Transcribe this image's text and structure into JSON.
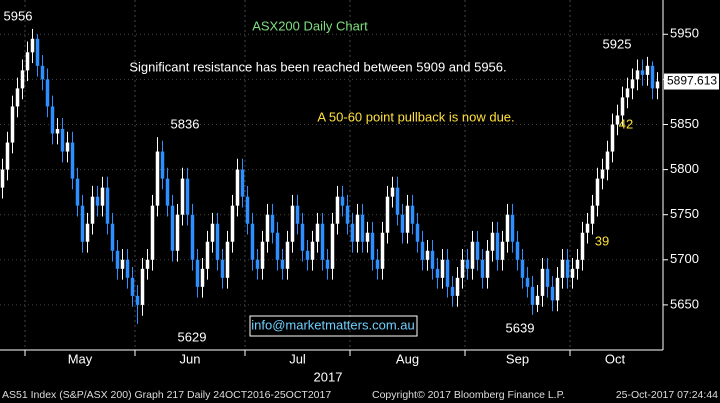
{
  "chart_data": {
    "type": "candlestick",
    "title": "ASX200 Daily Chart",
    "up_color": "#ffffff",
    "down_color": "#2f8fff",
    "ylim": [
      5600,
      5988
    ],
    "yticks": [
      5650,
      5700,
      5750,
      5800,
      5850,
      5900,
      5950
    ],
    "grid": true,
    "year_label": "2017",
    "months": [
      {
        "label": "May",
        "start": 5
      },
      {
        "label": "Jun",
        "start": 27
      },
      {
        "label": "Jul",
        "start": 49
      },
      {
        "label": "Aug",
        "start": 70
      },
      {
        "label": "Sep",
        "start": 93
      },
      {
        "label": "Oct",
        "start": 114
      }
    ],
    "open": [
      5780,
      5800,
      5830,
      5870,
      5890,
      5910,
      5930,
      5945,
      5915,
      5900,
      5870,
      5840,
      5845,
      5820,
      5830,
      5790,
      5760,
      5720,
      5740,
      5770,
      5760,
      5780,
      5740,
      5710,
      5690,
      5700,
      5680,
      5660,
      5650,
      5690,
      5700,
      5760,
      5820,
      5790,
      5760,
      5710,
      5750,
      5790,
      5750,
      5700,
      5670,
      5690,
      5720,
      5740,
      5700,
      5680,
      5720,
      5760,
      5800,
      5770,
      5740,
      5700,
      5690,
      5720,
      5750,
      5730,
      5700,
      5690,
      5720,
      5760,
      5740,
      5710,
      5700,
      5720,
      5740,
      5700,
      5690,
      5740,
      5770,
      5760,
      5740,
      5720,
      5750,
      5720,
      5730,
      5700,
      5690,
      5730,
      5770,
      5780,
      5750,
      5730,
      5760,
      5740,
      5720,
      5700,
      5710,
      5690,
      5680,
      5700,
      5670,
      5660,
      5680,
      5700,
      5690,
      5720,
      5700,
      5680,
      5710,
      5730,
      5700,
      5720,
      5750,
      5720,
      5700,
      5680,
      5670,
      5650,
      5660,
      5690,
      5670,
      5655,
      5680,
      5700,
      5680,
      5690,
      5700,
      5730,
      5740,
      5760,
      5790,
      5800,
      5820,
      5850,
      5860,
      5880,
      5890,
      5900,
      5910,
      5905,
      5915,
      5890
    ],
    "high": [
      5812,
      5842,
      5882,
      5902,
      5922,
      5942,
      5956,
      5950,
      5927,
      5912,
      5882,
      5857,
      5857,
      5842,
      5842,
      5802,
      5772,
      5752,
      5782,
      5782,
      5792,
      5792,
      5752,
      5722,
      5712,
      5712,
      5692,
      5672,
      5702,
      5712,
      5772,
      5836,
      5832,
      5802,
      5772,
      5762,
      5802,
      5802,
      5762,
      5712,
      5702,
      5732,
      5752,
      5752,
      5712,
      5732,
      5772,
      5812,
      5812,
      5782,
      5752,
      5712,
      5732,
      5762,
      5762,
      5742,
      5712,
      5732,
      5772,
      5772,
      5752,
      5722,
      5732,
      5752,
      5752,
      5712,
      5752,
      5782,
      5782,
      5772,
      5752,
      5762,
      5762,
      5742,
      5742,
      5712,
      5742,
      5782,
      5792,
      5792,
      5762,
      5772,
      5772,
      5752,
      5732,
      5722,
      5722,
      5702,
      5712,
      5712,
      5682,
      5692,
      5712,
      5712,
      5732,
      5732,
      5712,
      5722,
      5742,
      5742,
      5732,
      5762,
      5762,
      5732,
      5712,
      5692,
      5682,
      5672,
      5702,
      5702,
      5682,
      5692,
      5712,
      5712,
      5702,
      5712,
      5742,
      5752,
      5772,
      5802,
      5812,
      5832,
      5862,
      5872,
      5892,
      5902,
      5912,
      5922,
      5922,
      5925,
      5920,
      5908
    ],
    "low": [
      5768,
      5788,
      5818,
      5858,
      5878,
      5898,
      5918,
      5903,
      5888,
      5858,
      5828,
      5828,
      5808,
      5808,
      5778,
      5748,
      5708,
      5708,
      5728,
      5748,
      5748,
      5728,
      5698,
      5678,
      5678,
      5668,
      5648,
      5629,
      5638,
      5678,
      5688,
      5748,
      5778,
      5748,
      5698,
      5698,
      5738,
      5738,
      5688,
      5658,
      5658,
      5678,
      5708,
      5688,
      5668,
      5668,
      5708,
      5748,
      5758,
      5728,
      5688,
      5678,
      5678,
      5708,
      5718,
      5688,
      5678,
      5678,
      5708,
      5728,
      5698,
      5688,
      5688,
      5708,
      5688,
      5678,
      5678,
      5728,
      5748,
      5728,
      5708,
      5708,
      5708,
      5708,
      5688,
      5678,
      5678,
      5718,
      5758,
      5738,
      5718,
      5718,
      5728,
      5708,
      5688,
      5688,
      5678,
      5668,
      5668,
      5658,
      5648,
      5648,
      5668,
      5678,
      5678,
      5688,
      5668,
      5668,
      5698,
      5688,
      5688,
      5708,
      5708,
      5688,
      5668,
      5658,
      5639,
      5642,
      5648,
      5658,
      5643,
      5643,
      5668,
      5668,
      5668,
      5678,
      5688,
      5718,
      5728,
      5748,
      5778,
      5788,
      5808,
      5838,
      5848,
      5868,
      5878,
      5888,
      5893,
      5893,
      5878,
      5878
    ],
    "close": [
      5800,
      5830,
      5870,
      5890,
      5910,
      5930,
      5945,
      5915,
      5900,
      5870,
      5840,
      5845,
      5820,
      5830,
      5790,
      5760,
      5720,
      5740,
      5770,
      5760,
      5780,
      5740,
      5710,
      5690,
      5700,
      5680,
      5660,
      5650,
      5690,
      5700,
      5760,
      5820,
      5790,
      5760,
      5710,
      5750,
      5790,
      5750,
      5700,
      5670,
      5690,
      5720,
      5740,
      5700,
      5680,
      5720,
      5760,
      5800,
      5770,
      5740,
      5700,
      5690,
      5720,
      5750,
      5730,
      5700,
      5690,
      5720,
      5760,
      5740,
      5710,
      5700,
      5720,
      5740,
      5700,
      5690,
      5740,
      5770,
      5760,
      5740,
      5720,
      5750,
      5720,
      5730,
      5700,
      5690,
      5730,
      5770,
      5780,
      5750,
      5730,
      5760,
      5740,
      5720,
      5700,
      5710,
      5690,
      5680,
      5700,
      5670,
      5660,
      5680,
      5700,
      5690,
      5720,
      5700,
      5680,
      5710,
      5730,
      5700,
      5720,
      5750,
      5720,
      5700,
      5680,
      5670,
      5650,
      5660,
      5690,
      5670,
      5655,
      5680,
      5700,
      5680,
      5690,
      5700,
      5730,
      5740,
      5760,
      5790,
      5800,
      5820,
      5850,
      5860,
      5880,
      5890,
      5900,
      5910,
      5905,
      5915,
      5890,
      5897.613
    ],
    "price_labels": [
      {
        "value": 5956
      },
      {
        "value": 5836
      },
      {
        "value": 5629
      },
      {
        "value": 5639
      },
      {
        "value": 5925
      }
    ],
    "annotations": [
      "Significant resistance has been reached between 5909 and 5956.",
      "A 50-60 point pullback is now due.",
      "42",
      "39"
    ],
    "contact": "info@marketmatters.com.au",
    "footer": [
      "AS51 Index (S&P/ASX 200) Graph 217  Daily 24OCT2016-25OCT2017",
      "Copyright© 2017 Bloomberg Finance L.P.",
      "25-Oct-2017 07:24:44"
    ]
  }
}
